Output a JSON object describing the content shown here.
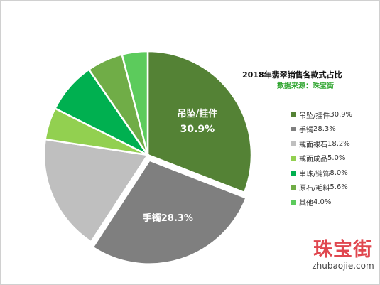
{
  "chart_data": {
    "type": "pie",
    "title": "2018年翡翠销售各款式占比",
    "subtitle": "数据来源：珠宝街",
    "start_angle_deg": 0,
    "explode_index": 1,
    "slices": [
      {
        "label": "吊坠/挂件",
        "value": 30.9,
        "value_text": "30.9%",
        "color": "#548235",
        "text_color": "#ffffff",
        "inside_label": "吊坠/挂件",
        "inside_value": "30.9%"
      },
      {
        "label": "手镯",
        "value": 28.3,
        "value_text": "28.3%",
        "color": "#7f7f7f",
        "text_color": "#ffffff",
        "inside_label": "手镯28.3%"
      },
      {
        "label": "戒面裸石",
        "value": 18.2,
        "value_text": "18.2%",
        "color": "#bfbfbf"
      },
      {
        "label": "戒面成品",
        "value": 5.0,
        "value_text": "5.0%",
        "color": "#92d050"
      },
      {
        "label": "串珠/链饰",
        "value": 8.0,
        "value_text": "8.0%",
        "color": "#00b050"
      },
      {
        "label": "原石/毛料",
        "value": 5.6,
        "value_text": "5.6%",
        "color": "#70ad47"
      },
      {
        "label": "其他",
        "value": 4.0,
        "value_text": "4.0%",
        "color": "#5ccb5c"
      }
    ]
  },
  "watermark": {
    "brand": "珠宝街",
    "domain": "zhubaojie.com",
    "color": "#e0474f"
  }
}
